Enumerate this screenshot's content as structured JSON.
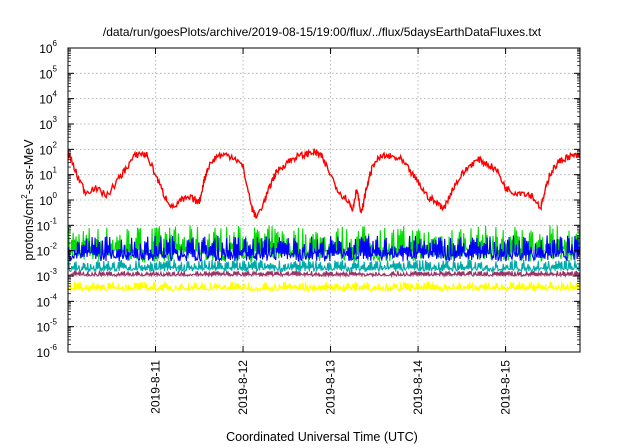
{
  "chart_data": {
    "type": "line",
    "title": "/data/run/goesPlots/archive/2019-08-15/19:00/flux/../flux/5daysEarthDataFluxes.txt",
    "xlabel": "Coordinated Universal Time (UTC)",
    "ylabel": "protons/cm²-s-sr-MeV",
    "yscale": "log",
    "ylim": [
      1e-06,
      1000000.0
    ],
    "xlim": [
      0,
      5.85
    ],
    "grid": true,
    "x_tick_values": [
      1,
      2,
      3,
      4,
      5
    ],
    "x_tick_labels": [
      "2019-8-11",
      "2019-8-12",
      "2019-8-13",
      "2019-8-14",
      "2019-8-15"
    ],
    "y_ticks": [
      {
        "base": "10",
        "exp": "-6",
        "value": 1e-06
      },
      {
        "base": "10",
        "exp": "-5",
        "value": 1e-05
      },
      {
        "base": "10",
        "exp": "-4",
        "value": 0.0001
      },
      {
        "base": "10",
        "exp": "-3",
        "value": 0.001
      },
      {
        "base": "10",
        "exp": "-2",
        "value": 0.01
      },
      {
        "base": "10",
        "exp": "-1",
        "value": 0.1
      },
      {
        "base": "10",
        "exp": "0",
        "value": 1
      },
      {
        "base": "10",
        "exp": "1",
        "value": 10
      },
      {
        "base": "10",
        "exp": "2",
        "value": 100
      },
      {
        "base": "10",
        "exp": "3",
        "value": 1000
      },
      {
        "base": "10",
        "exp": "4",
        "value": 10000
      },
      {
        "base": "10",
        "exp": "5",
        "value": 100000
      },
      {
        "base": "10",
        "exp": "6",
        "value": 1000000
      }
    ],
    "series": [
      {
        "color": "#ff0000",
        "x": [
          0.0,
          0.1,
          0.2,
          0.3,
          0.45,
          0.55,
          0.65,
          0.75,
          0.82,
          0.9,
          1.0,
          1.1,
          1.2,
          1.3,
          1.4,
          1.5,
          1.55,
          1.6,
          1.7,
          1.8,
          1.9,
          2.0,
          2.1,
          2.15,
          2.25,
          2.3,
          2.35,
          2.4,
          2.5,
          2.6,
          2.7,
          2.8,
          2.85,
          2.9,
          3.0,
          3.1,
          3.2,
          3.25,
          3.3,
          3.35,
          3.4,
          3.45,
          3.5,
          3.6,
          3.7,
          3.8,
          3.9,
          4.0,
          4.1,
          4.2,
          4.3,
          4.4,
          4.5,
          4.6,
          4.7,
          4.8,
          4.9,
          5.0,
          5.1,
          5.2,
          5.3,
          5.4,
          5.45,
          5.5,
          5.6,
          5.7,
          5.8,
          5.85
        ],
        "y": [
          80,
          10,
          2,
          3,
          1.5,
          5,
          15,
          50,
          70,
          60,
          10,
          1.5,
          0.5,
          1,
          1.2,
          0.8,
          5,
          20,
          55,
          60,
          50,
          20,
          0.5,
          0.2,
          1,
          3,
          8,
          15,
          30,
          50,
          60,
          80,
          70,
          50,
          10,
          2,
          1,
          0.4,
          3,
          0.25,
          2,
          10,
          30,
          55,
          50,
          40,
          15,
          5,
          1.5,
          0.8,
          0.5,
          3,
          10,
          25,
          40,
          25,
          15,
          3,
          2,
          2,
          1.5,
          0.5,
          2,
          10,
          30,
          50,
          55,
          55
        ]
      },
      {
        "color": "#00dd00",
        "band_low": 0.002,
        "band_high": 0.1
      },
      {
        "color": "#0000ff",
        "band_low": 0.0025,
        "band_high": 0.04
      },
      {
        "color": "#00aaaa",
        "band_low": 0.0012,
        "band_high": 0.0045
      },
      {
        "color": "#993366",
        "band_low": 0.0009,
        "band_high": 0.0016
      },
      {
        "color": "#ffff00",
        "band_low": 0.00022,
        "band_high": 0.0006
      }
    ]
  }
}
